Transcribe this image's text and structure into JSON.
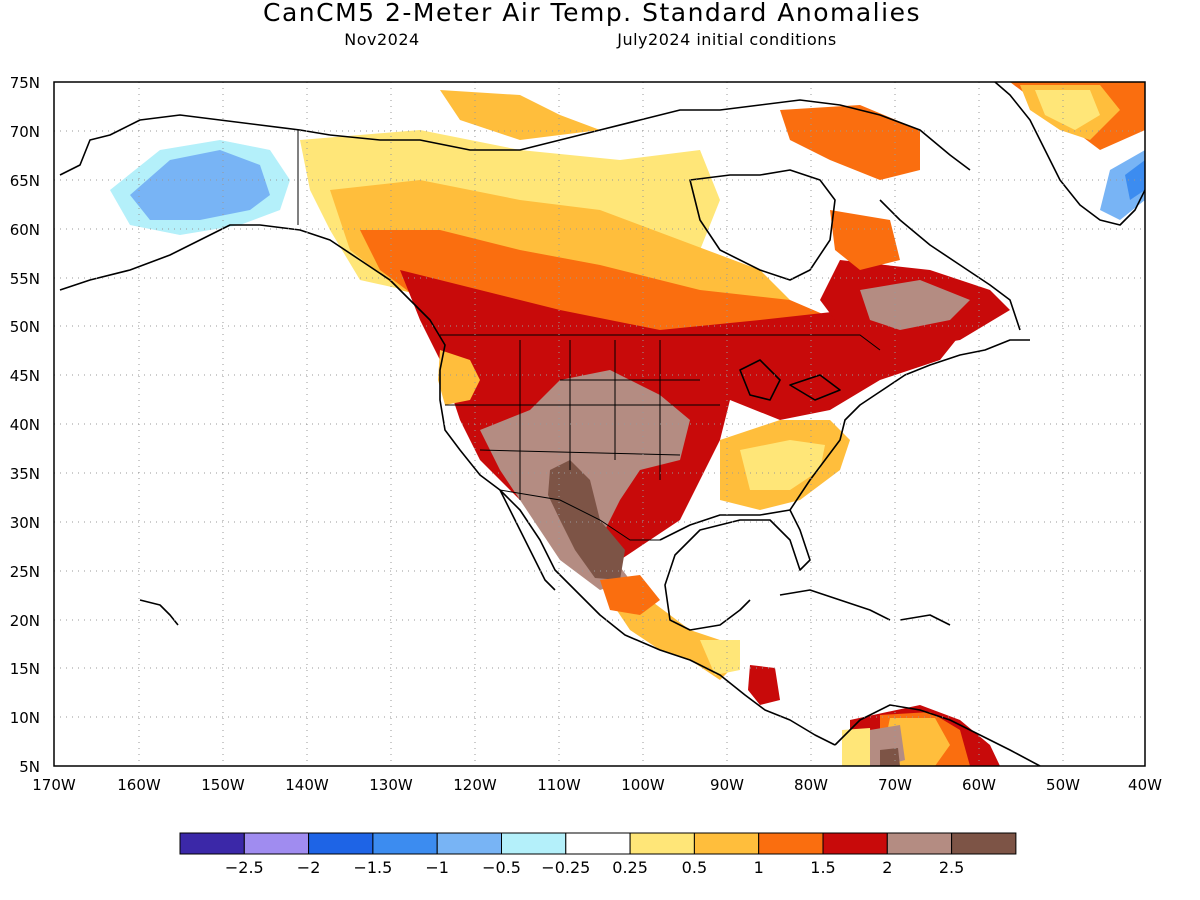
{
  "title": "CanCM5 2-Meter Air Temp. Standard Anomalies",
  "subtitle_left": "Nov2024",
  "subtitle_right": "July2024 initial conditions",
  "lat_labels": [
    "75N",
    "70N",
    "65N",
    "60N",
    "55N",
    "50N",
    "45N",
    "40N",
    "35N",
    "30N",
    "25N",
    "20N",
    "15N",
    "10N",
    "5N"
  ],
  "lon_labels": [
    "170W",
    "160W",
    "150W",
    "140W",
    "130W",
    "120W",
    "110W",
    "100W",
    "90W",
    "80W",
    "70W",
    "60W",
    "50W",
    "40W"
  ],
  "colorbar": {
    "colors": [
      "#3b28a8",
      "#a08cf0",
      "#1e64e6",
      "#3c8cf0",
      "#78b4f5",
      "#b4f0fa",
      "#ffffff",
      "#ffe678",
      "#ffbe3c",
      "#fa6e0f",
      "#c80a0a",
      "#b48c82",
      "#7d5446"
    ],
    "labels": [
      "-2.5",
      "-2",
      "-1.5",
      "-1",
      "-0.5",
      "-0.25",
      "0.25",
      "0.5",
      "1",
      "1.5",
      "2",
      "2.5"
    ]
  },
  "map_colors": {
    "land_outline": "#000000",
    "ocean": "#ffffff",
    "grid": "#999999"
  }
}
